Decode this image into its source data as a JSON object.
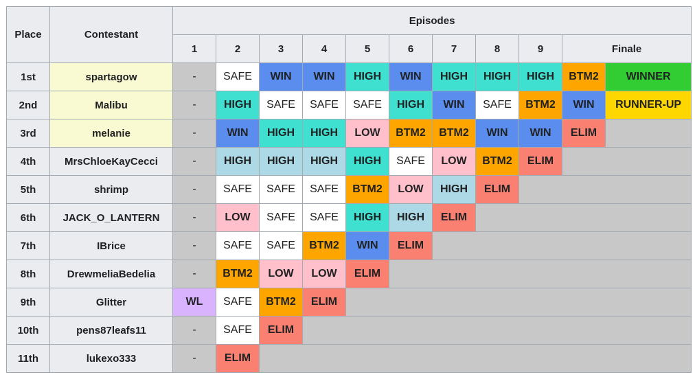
{
  "table": {
    "headers": {
      "place": "Place",
      "contestant": "Contestant",
      "episodes": "Episodes",
      "numbers": [
        "1",
        "2",
        "3",
        "4",
        "5",
        "6",
        "7",
        "8",
        "9"
      ],
      "finale": "Finale"
    },
    "rows": [
      {
        "place": "1st",
        "contestant": "spartagow",
        "highlight": "#fafad2",
        "results": [
          {
            "text": "-",
            "color": "#c8c8c8"
          },
          {
            "text": "SAFE",
            "color": "#ffffff"
          },
          {
            "text": "WIN",
            "color": "#5b8def"
          },
          {
            "text": "WIN",
            "color": "#5b8def"
          },
          {
            "text": "HIGH",
            "color": "#40e0d0"
          },
          {
            "text": "WIN",
            "color": "#5b8def"
          },
          {
            "text": "HIGH",
            "color": "#40e0d0"
          },
          {
            "text": "HIGH",
            "color": "#40e0d0"
          },
          {
            "text": "HIGH",
            "color": "#40e0d0"
          },
          {
            "text": "BTM2",
            "color": "#ffa500"
          },
          {
            "text": "WINNER",
            "color": "#32cd32"
          }
        ]
      },
      {
        "place": "2nd",
        "contestant": "Malibu",
        "highlight": "#fafad2",
        "results": [
          {
            "text": "-",
            "color": "#c8c8c8"
          },
          {
            "text": "HIGH",
            "color": "#40e0d0"
          },
          {
            "text": "SAFE",
            "color": "#ffffff"
          },
          {
            "text": "SAFE",
            "color": "#ffffff"
          },
          {
            "text": "SAFE",
            "color": "#ffffff"
          },
          {
            "text": "HIGH",
            "color": "#40e0d0"
          },
          {
            "text": "WIN",
            "color": "#5b8def"
          },
          {
            "text": "SAFE",
            "color": "#ffffff"
          },
          {
            "text": "BTM2",
            "color": "#ffa500"
          },
          {
            "text": "WIN",
            "color": "#5b8def"
          },
          {
            "text": "RUNNER-UP",
            "color": "#ffd700"
          }
        ]
      },
      {
        "place": "3rd",
        "contestant": "melanie",
        "highlight": "#fafad2",
        "results": [
          {
            "text": "-",
            "color": "#c8c8c8"
          },
          {
            "text": "WIN",
            "color": "#5b8def"
          },
          {
            "text": "HIGH",
            "color": "#40e0d0"
          },
          {
            "text": "HIGH",
            "color": "#40e0d0"
          },
          {
            "text": "LOW",
            "color": "#ffc0cb"
          },
          {
            "text": "BTM2",
            "color": "#ffa500"
          },
          {
            "text": "BTM2",
            "color": "#ffa500"
          },
          {
            "text": "WIN",
            "color": "#5b8def"
          },
          {
            "text": "WIN",
            "color": "#5b8def"
          },
          {
            "text": "ELIM",
            "color": "#fa8072"
          }
        ]
      },
      {
        "place": "4th",
        "contestant": "MrsChloeKayCecci",
        "highlight": "#eaecf0",
        "results": [
          {
            "text": "-",
            "color": "#c8c8c8"
          },
          {
            "text": "HIGH",
            "color": "#add8e6"
          },
          {
            "text": "HIGH",
            "color": "#add8e6"
          },
          {
            "text": "HIGH",
            "color": "#add8e6"
          },
          {
            "text": "HIGH",
            "color": "#40e0d0"
          },
          {
            "text": "SAFE",
            "color": "#ffffff"
          },
          {
            "text": "LOW",
            "color": "#ffc0cb"
          },
          {
            "text": "BTM2",
            "color": "#ffa500"
          },
          {
            "text": "ELIM",
            "color": "#fa8072"
          }
        ]
      },
      {
        "place": "5th",
        "contestant": "shrimp",
        "highlight": "#eaecf0",
        "results": [
          {
            "text": "-",
            "color": "#c8c8c8"
          },
          {
            "text": "SAFE",
            "color": "#ffffff"
          },
          {
            "text": "SAFE",
            "color": "#ffffff"
          },
          {
            "text": "SAFE",
            "color": "#ffffff"
          },
          {
            "text": "BTM2",
            "color": "#ffa500"
          },
          {
            "text": "LOW",
            "color": "#ffc0cb"
          },
          {
            "text": "HIGH",
            "color": "#add8e6"
          },
          {
            "text": "ELIM",
            "color": "#fa8072"
          }
        ]
      },
      {
        "place": "6th",
        "contestant": "JACK_O_LANTERN",
        "highlight": "#eaecf0",
        "results": [
          {
            "text": "-",
            "color": "#c8c8c8"
          },
          {
            "text": "LOW",
            "color": "#ffc0cb"
          },
          {
            "text": "SAFE",
            "color": "#ffffff"
          },
          {
            "text": "SAFE",
            "color": "#ffffff"
          },
          {
            "text": "HIGH",
            "color": "#40e0d0"
          },
          {
            "text": "HIGH",
            "color": "#add8e6"
          },
          {
            "text": "ELIM",
            "color": "#fa8072"
          }
        ]
      },
      {
        "place": "7th",
        "contestant": "IBrice",
        "highlight": "#eaecf0",
        "results": [
          {
            "text": "-",
            "color": "#c8c8c8"
          },
          {
            "text": "SAFE",
            "color": "#ffffff"
          },
          {
            "text": "SAFE",
            "color": "#ffffff"
          },
          {
            "text": "BTM2",
            "color": "#ffa500"
          },
          {
            "text": "WIN",
            "color": "#5b8def"
          },
          {
            "text": "ELIM",
            "color": "#fa8072"
          }
        ]
      },
      {
        "place": "8th",
        "contestant": "DrewmeliaBedelia",
        "highlight": "#eaecf0",
        "results": [
          {
            "text": "-",
            "color": "#c8c8c8"
          },
          {
            "text": "BTM2",
            "color": "#ffa500"
          },
          {
            "text": "LOW",
            "color": "#ffc0cb"
          },
          {
            "text": "LOW",
            "color": "#ffc0cb"
          },
          {
            "text": "ELIM",
            "color": "#fa8072"
          }
        ]
      },
      {
        "place": "9th",
        "contestant": "Glitter",
        "highlight": "#eaecf0",
        "results": [
          {
            "text": "WL",
            "color": "#dab3ff"
          },
          {
            "text": "SAFE",
            "color": "#ffffff"
          },
          {
            "text": "BTM2",
            "color": "#ffa500"
          },
          {
            "text": "ELIM",
            "color": "#fa8072"
          }
        ]
      },
      {
        "place": "10th",
        "contestant": "pens87leafs11",
        "highlight": "#eaecf0",
        "results": [
          {
            "text": "-",
            "color": "#c8c8c8"
          },
          {
            "text": "SAFE",
            "color": "#ffffff"
          },
          {
            "text": "ELIM",
            "color": "#fa8072"
          }
        ]
      },
      {
        "place": "11th",
        "contestant": "lukexo333",
        "highlight": "#eaecf0",
        "results": [
          {
            "text": "-",
            "color": "#c8c8c8"
          },
          {
            "text": "ELIM",
            "color": "#fa8072"
          }
        ]
      }
    ]
  }
}
